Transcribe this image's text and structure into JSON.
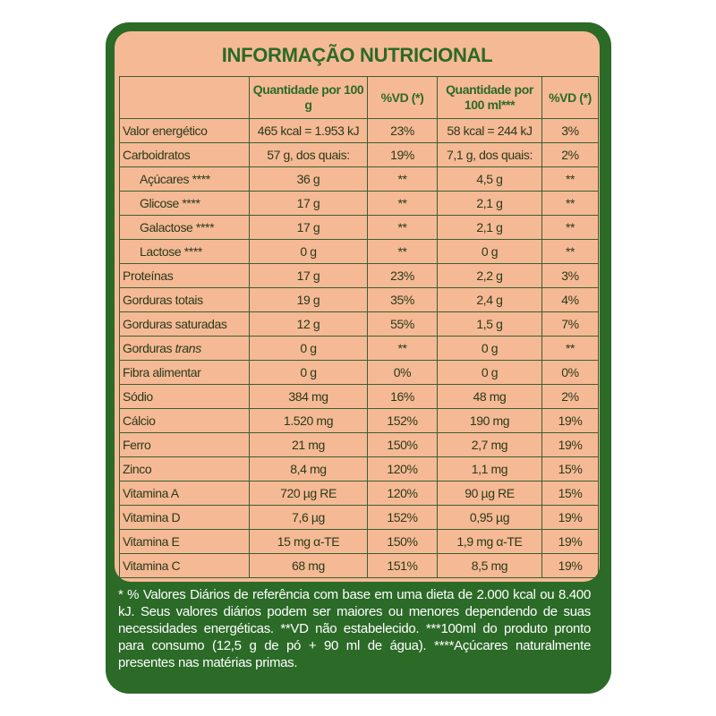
{
  "title": "INFORMAÇÃO NUTRICIONAL",
  "table": {
    "header": [
      "Quantidade por 100 g",
      "%VD (*)",
      "Quantidade por 100 ml***",
      "%VD (*)"
    ],
    "rows": [
      {
        "label": "Valor energético",
        "cells": [
          "465 kcal = 1.953 kJ",
          "23%",
          "58 kcal = 244 kJ",
          "3%"
        ]
      },
      {
        "label": "Carboidratos",
        "cells": [
          "57 g, dos quais:",
          "19%",
          "7,1 g, dos quais:",
          "2%"
        ]
      },
      {
        "label": "Açúcares ****",
        "sub": true,
        "cells": [
          "36 g",
          "**",
          "4,5 g",
          "**"
        ]
      },
      {
        "label": "Glicose ****",
        "sub": true,
        "cells": [
          "17 g",
          "**",
          "2,1 g",
          "**"
        ]
      },
      {
        "label": "Galactose ****",
        "sub": true,
        "cells": [
          "17 g",
          "**",
          "2,1 g",
          "**"
        ]
      },
      {
        "label": "Lactose ****",
        "sub": true,
        "cells": [
          "0 g",
          "**",
          "0 g",
          "**"
        ]
      },
      {
        "label": "Proteínas",
        "cells": [
          "17 g",
          "23%",
          "2,2 g",
          "3%"
        ]
      },
      {
        "label": "Gorduras totais",
        "cells": [
          "19 g",
          "35%",
          "2,4 g",
          "4%"
        ]
      },
      {
        "label": "Gorduras saturadas",
        "cells": [
          "12 g",
          "55%",
          "1,5 g",
          "7%"
        ]
      },
      {
        "label": "Gorduras",
        "label_italic": "trans",
        "cells": [
          "0 g",
          "**",
          "0 g",
          "**"
        ]
      },
      {
        "label": "Fibra alimentar",
        "cells": [
          "0 g",
          "0%",
          "0 g",
          "0%"
        ]
      },
      {
        "label": "Sódio",
        "cells": [
          "384 mg",
          "16%",
          "48 mg",
          "2%"
        ]
      },
      {
        "label": "Cálcio",
        "cells": [
          "1.520 mg",
          "152%",
          "190 mg",
          "19%"
        ]
      },
      {
        "label": "Ferro",
        "cells": [
          "21 mg",
          "150%",
          "2,7 mg",
          "19%"
        ]
      },
      {
        "label": "Zinco",
        "cells": [
          "8,4 mg",
          "120%",
          "1,1 mg",
          "15%"
        ]
      },
      {
        "label": "Vitamina A",
        "cells": [
          "720 µg RE",
          "120%",
          "90 µg RE",
          "15%"
        ]
      },
      {
        "label": "Vitamina D",
        "cells": [
          "7,6 µg",
          "152%",
          "0,95 µg",
          "19%"
        ]
      },
      {
        "label": "Vitamina E",
        "cells": [
          "15 mg α-TE",
          "150%",
          "1,9 mg α-TE",
          "19%"
        ]
      },
      {
        "label": "Vitamina C",
        "cells": [
          "68 mg",
          "151%",
          "8,5 mg",
          "19%"
        ]
      }
    ]
  },
  "footnotes": [
    "* % Valores Diários de referência com base em uma dieta de 2.000 kcal ou 8.400 kJ. Seus valores diários podem ser maiores ou menores dependendo de suas necessidades energéticas.",
    "**VD não estabelecido.",
    "***100ml do produto pronto para consumo (12,5 g de pó + 90 ml de água).",
    "****Açúcares naturalmente presentes nas matérias primas."
  ]
}
